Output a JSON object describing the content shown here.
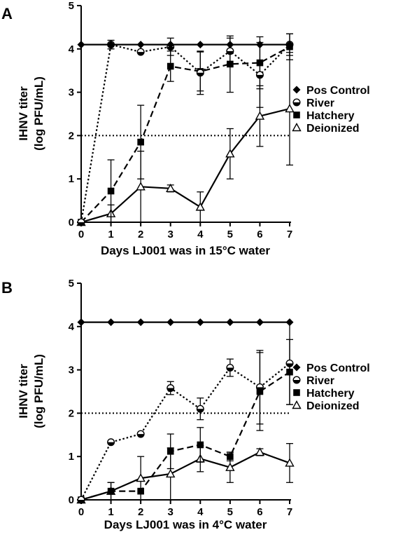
{
  "chart_data": [
    {
      "type": "line",
      "panel": "A",
      "xlabel": "Days LJ001 was in 15°C water",
      "ylabel_line1": "IHNV titer",
      "ylabel_line2": "(log PFU/mL)",
      "x": [
        0,
        1,
        2,
        3,
        4,
        5,
        6,
        7
      ],
      "xlim": [
        0,
        7
      ],
      "ylim": [
        0,
        5
      ],
      "yticks": [
        0,
        1,
        2,
        3,
        4,
        5
      ],
      "reference_line": 2,
      "legend_position": "right",
      "series": [
        {
          "name": "Pos Control",
          "marker": "diamond",
          "dash": "solid",
          "points": [
            [
              0,
              4.1
            ],
            [
              1,
              4.1
            ],
            [
              2,
              4.1
            ],
            [
              3,
              4.1
            ],
            [
              4,
              4.1
            ],
            [
              5,
              4.1
            ],
            [
              6,
              4.1
            ],
            [
              7,
              4.1
            ]
          ],
          "errors": [
            0,
            0,
            0,
            0,
            0,
            0,
            0,
            0
          ]
        },
        {
          "name": "River",
          "marker": "circle-open",
          "dash": "dotted",
          "points": [
            [
              0,
              0
            ],
            [
              1,
              4.1
            ],
            [
              2,
              3.93
            ],
            [
              3,
              4.05
            ],
            [
              4,
              3.45
            ],
            [
              5,
              3.95
            ],
            [
              6,
              3.4
            ],
            [
              7,
              4.1
            ]
          ],
          "errors": [
            0,
            0.1,
            0,
            0.2,
            0.5,
            0.3,
            0.75,
            0.25
          ]
        },
        {
          "name": "Hatchery",
          "marker": "square",
          "dash": "dashed",
          "points": [
            [
              0,
              0
            ],
            [
              1,
              0.72
            ],
            [
              2,
              1.85
            ],
            [
              3,
              3.6
            ],
            [
              4,
              3.48
            ],
            [
              5,
              3.65
            ],
            [
              6,
              3.68
            ],
            [
              7,
              4.05
            ]
          ],
          "errors": [
            0,
            0.72,
            0.85,
            0.35,
            0.45,
            0.65,
            0.6,
            0.3
          ]
        },
        {
          "name": "Deionized",
          "marker": "triangle-open",
          "dash": "solid",
          "points": [
            [
              0,
              0
            ],
            [
              1,
              0.2
            ],
            [
              2,
              0.82
            ],
            [
              3,
              0.78
            ],
            [
              4,
              0.35
            ],
            [
              5,
              1.58
            ],
            [
              6,
              2.45
            ],
            [
              7,
              2.62
            ]
          ],
          "errors": [
            0,
            0.2,
            0.82,
            0.08,
            0.35,
            0.58,
            0.7,
            1.3
          ]
        }
      ]
    },
    {
      "type": "line",
      "panel": "B",
      "xlabel": "Days LJ001 was in 4°C water",
      "ylabel_line1": "IHNV titer",
      "ylabel_line2": "(log PFU/mL)",
      "x": [
        0,
        1,
        2,
        3,
        4,
        5,
        6,
        7
      ],
      "xlim": [
        0,
        7
      ],
      "ylim": [
        0,
        5
      ],
      "yticks": [
        0,
        1,
        2,
        3,
        4,
        5
      ],
      "reference_line": 2,
      "legend_position": "right",
      "series": [
        {
          "name": "Pos Control",
          "marker": "diamond",
          "dash": "solid",
          "points": [
            [
              0,
              4.1
            ],
            [
              1,
              4.1
            ],
            [
              2,
              4.1
            ],
            [
              3,
              4.1
            ],
            [
              4,
              4.1
            ],
            [
              5,
              4.1
            ],
            [
              6,
              4.1
            ],
            [
              7,
              4.1
            ]
          ],
          "errors": [
            0,
            0,
            0,
            0,
            0,
            0,
            0,
            0
          ]
        },
        {
          "name": "River",
          "marker": "circle-open",
          "dash": "dotted",
          "points": [
            [
              0,
              0
            ],
            [
              1,
              1.33
            ],
            [
              2,
              1.52
            ],
            [
              3,
              2.58
            ],
            [
              4,
              2.1
            ],
            [
              5,
              3.05
            ],
            [
              6,
              2.6
            ],
            [
              7,
              3.15
            ]
          ],
          "errors": [
            0,
            0,
            0,
            0.15,
            0.25,
            0.2,
            0.85,
            0.95
          ]
        },
        {
          "name": "Hatchery",
          "marker": "square",
          "dash": "dashed",
          "points": [
            [
              0,
              0
            ],
            [
              1,
              0.2
            ],
            [
              2,
              0.2
            ],
            [
              3,
              1.12
            ],
            [
              4,
              1.27
            ],
            [
              5,
              1.0
            ],
            [
              6,
              2.5
            ],
            [
              7,
              2.95
            ]
          ],
          "errors": [
            0,
            0.2,
            0,
            0.4,
            0.4,
            0.1,
            0.9,
            0.75
          ]
        },
        {
          "name": "Deionized",
          "marker": "triangle-open",
          "dash": "solid",
          "points": [
            [
              0,
              0
            ],
            [
              1,
              0.2
            ],
            [
              2,
              0.5
            ],
            [
              3,
              0.6
            ],
            [
              4,
              0.95
            ],
            [
              5,
              0.75
            ],
            [
              6,
              1.1
            ],
            [
              7,
              0.85
            ]
          ],
          "errors": [
            0,
            0.2,
            0.5,
            0.6,
            0.3,
            0.35,
            0.08,
            0.45
          ]
        }
      ]
    }
  ]
}
